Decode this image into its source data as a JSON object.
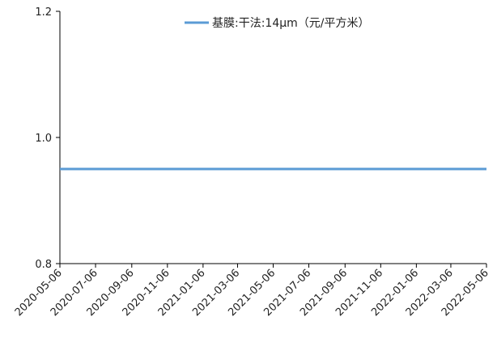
{
  "chart_data": {
    "type": "line",
    "title": "",
    "xlabel": "",
    "ylabel": "",
    "x": [
      "2020-05-06",
      "2022-05-06"
    ],
    "x_tick_labels": [
      "2020-05-06",
      "2020-07-06",
      "2020-09-06",
      "2020-11-06",
      "2021-01-06",
      "2021-03-06",
      "2021-05-06",
      "2021-07-06",
      "2021-09-06",
      "2021-11-06",
      "2022-01-06",
      "2022-03-06",
      "2022-05-06"
    ],
    "y_tick_labels": [
      "1.2",
      "1.0",
      "0.8"
    ],
    "ylim": [
      0.8,
      1.2
    ],
    "grid": false,
    "legend_position": "top-center",
    "series": [
      {
        "name": "基膜:干法:14μm（元/平方米）",
        "values": [
          0.95,
          0.95
        ],
        "color": "#5b9bd5"
      }
    ]
  }
}
